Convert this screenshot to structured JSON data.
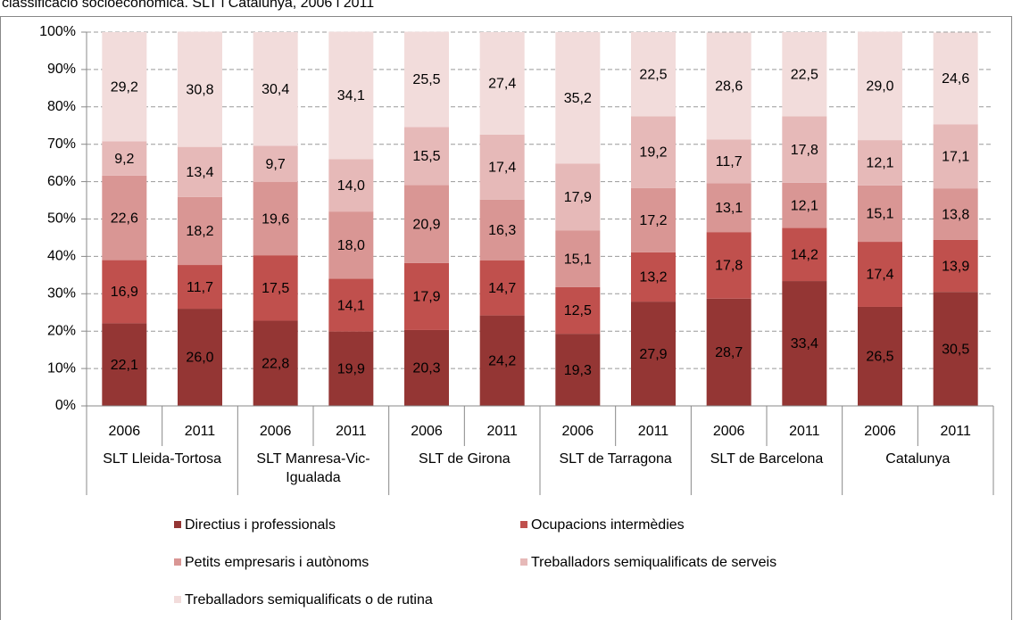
{
  "chart_data": {
    "type": "stacked_bar",
    "title": "classificació socioeconòmica. SLT i Catalunya, 2006 i 2011",
    "categories": [
      "2006",
      "2011",
      "2006",
      "2011",
      "2006",
      "2011",
      "2006",
      "2011",
      "2006",
      "2011",
      "2006",
      "2011"
    ],
    "groups": [
      "SLT Lleida-Tortosa",
      "SLT Manresa-Vic-Igualada",
      "SLT de Girona",
      "SLT de Tarragona",
      "SLT de Barcelona",
      "Catalunya"
    ],
    "series": [
      {
        "name": "Directius i professionals",
        "color": "#943634",
        "values": [
          22.1,
          26.0,
          22.8,
          19.9,
          20.3,
          24.2,
          19.3,
          27.9,
          28.7,
          33.4,
          26.5,
          30.5
        ],
        "value_labels": [
          "22,1",
          "26,0",
          "22,8",
          "19,9",
          "20,3",
          "24,2",
          "19,3",
          "27,9",
          "28,7",
          "33,4",
          "26,5",
          "30,5"
        ]
      },
      {
        "name": "Ocupacions intermèdies",
        "color": "#c0504d",
        "values": [
          16.9,
          11.7,
          17.5,
          14.1,
          17.9,
          14.7,
          12.5,
          13.2,
          17.8,
          14.2,
          17.4,
          13.9
        ],
        "value_labels": [
          "16,9",
          "11,7",
          "17,5",
          "14,1",
          "17,9",
          "14,7",
          "12,5",
          "13,2",
          "17,8",
          "14,2",
          "17,4",
          "13,9"
        ]
      },
      {
        "name": "Petits empresaris i autònoms",
        "color": "#d99694",
        "values": [
          22.6,
          18.2,
          19.6,
          18.0,
          20.9,
          16.3,
          15.1,
          17.2,
          13.1,
          12.1,
          15.1,
          13.8
        ],
        "value_labels": [
          "22,6",
          "18,2",
          "19,6",
          "18,0",
          "20,9",
          "16,3",
          "15,1",
          "17,2",
          "13,1",
          "12,1",
          "15,1",
          "13,8"
        ]
      },
      {
        "name": "Treballadors semiqualificats de serveis",
        "color": "#e6b9b8",
        "values": [
          9.2,
          13.4,
          9.7,
          14.0,
          15.5,
          17.4,
          17.9,
          19.2,
          11.7,
          17.8,
          12.1,
          17.1
        ],
        "value_labels": [
          "9,2",
          "13,4",
          "9,7",
          "14,0",
          "15,5",
          "17,4",
          "17,9",
          "19,2",
          "11,7",
          "17,8",
          "12,1",
          "17,1"
        ]
      },
      {
        "name": "Treballadors semiqualificats o de rutina",
        "color": "#f2dcdb",
        "values": [
          29.2,
          30.8,
          30.4,
          34.1,
          25.5,
          27.4,
          35.2,
          22.5,
          28.6,
          22.5,
          29.0,
          24.6
        ],
        "value_labels": [
          "29,2",
          "30,8",
          "30,4",
          "34,1",
          "25,5",
          "27,4",
          "35,2",
          "22,5",
          "28,6",
          "22,5",
          "29,0",
          "24,6"
        ]
      }
    ],
    "ylim": [
      0,
      100
    ],
    "yticks": [
      {
        "value": 0,
        "label": "0%"
      },
      {
        "value": 10,
        "label": "10%"
      },
      {
        "value": 20,
        "label": "20%"
      },
      {
        "value": 30,
        "label": "30%"
      },
      {
        "value": 40,
        "label": "40%"
      },
      {
        "value": 50,
        "label": "50%"
      },
      {
        "value": 60,
        "label": "60%"
      },
      {
        "value": 70,
        "label": "70%"
      },
      {
        "value": 80,
        "label": "80%"
      },
      {
        "value": 90,
        "label": "90%"
      },
      {
        "value": 100,
        "label": "100%"
      }
    ],
    "grid": true
  }
}
